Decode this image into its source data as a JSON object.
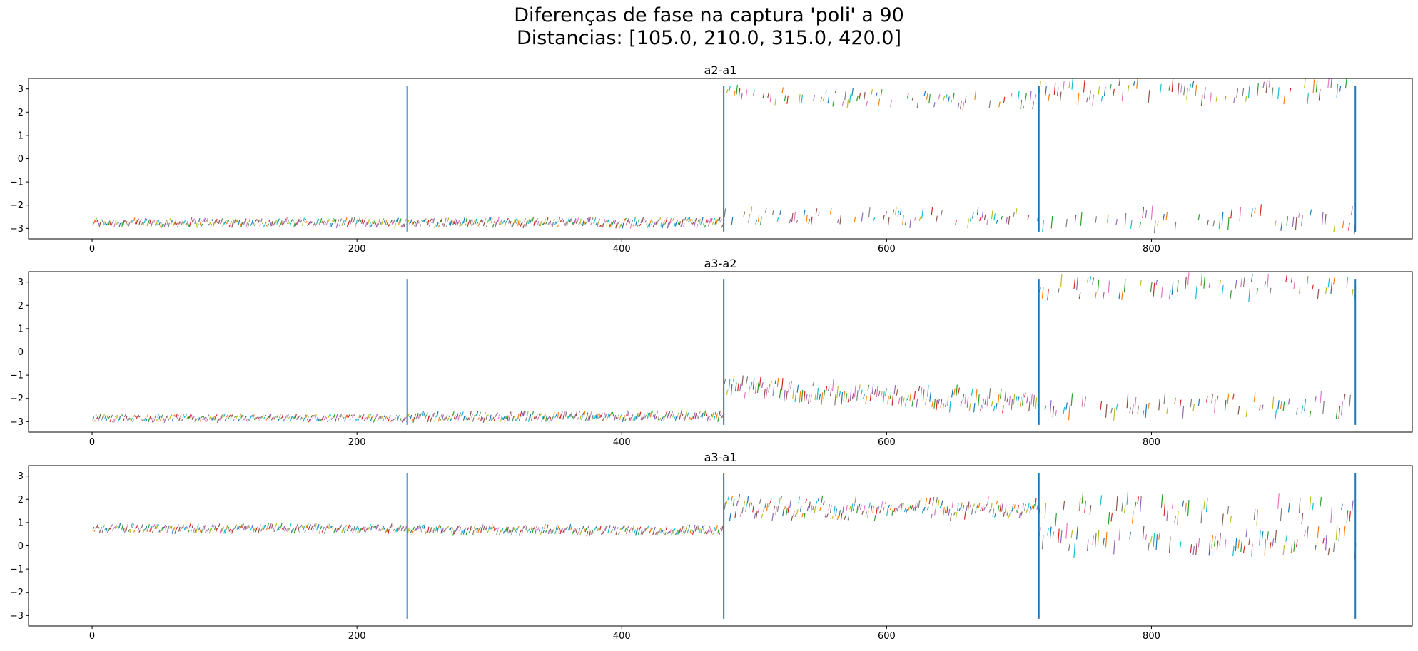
{
  "figure": {
    "title_line1": "Diferenças de fase na captura 'poli' a 90",
    "title_line2": "Distancias: [105.0, 210.0, 315.0, 420.0]"
  },
  "palette": [
    "#1f77b4",
    "#ff7f0e",
    "#2ca02c",
    "#d62728",
    "#9467bd",
    "#8c564b",
    "#e377c2",
    "#7f7f7f",
    "#bcbd22",
    "#17becf"
  ],
  "boundary_color": "#1f77b4",
  "chart_data": [
    {
      "type": "line",
      "title": "a2-a1",
      "xlabel": "",
      "ylabel": "",
      "xlim": [
        -48,
        997
      ],
      "ylim": [
        -3.45,
        3.45
      ],
      "xticks": [
        0,
        200,
        400,
        600,
        800
      ],
      "yticks": [
        -3,
        -2,
        -1,
        0,
        1,
        2,
        3
      ],
      "boundaries_x": [
        238,
        477,
        715,
        954
      ],
      "boundaries_y": [
        -3.14,
        3.14
      ],
      "segments": [
        {
          "x": [
            0,
            238
          ],
          "upper": null,
          "lower": [
            -2.75,
            -2.75
          ],
          "spread": 0.18,
          "density": 1.0
        },
        {
          "x": [
            238,
            477
          ],
          "upper": null,
          "lower": [
            -2.75,
            -2.75
          ],
          "spread": 0.2,
          "density": 1.0
        },
        {
          "x": [
            477,
            715
          ],
          "upper": [
            2.75,
            2.45
          ],
          "lower": [
            -2.45,
            -2.55
          ],
          "spread": 0.35,
          "density": 0.55
        },
        {
          "x": [
            715,
            954
          ],
          "upper": [
            2.9,
            2.9
          ],
          "lower": [
            -2.6,
            -2.6
          ],
          "spread": 0.5,
          "density": 0.45
        }
      ]
    },
    {
      "type": "line",
      "title": "a3-a2",
      "xlabel": "",
      "ylabel": "",
      "xlim": [
        -48,
        997
      ],
      "ylim": [
        -3.45,
        3.45
      ],
      "xticks": [
        0,
        200,
        400,
        600,
        800
      ],
      "yticks": [
        -3,
        -2,
        -1,
        0,
        1,
        2,
        3
      ],
      "boundaries_x": [
        238,
        477,
        715,
        954
      ],
      "boundaries_y": [
        -3.14,
        3.14
      ],
      "segments": [
        {
          "x": [
            0,
            238
          ],
          "upper": null,
          "lower": [
            -2.85,
            -2.85
          ],
          "spread": 0.15,
          "density": 1.0
        },
        {
          "x": [
            238,
            477
          ],
          "upper": null,
          "lower": [
            -2.8,
            -2.75
          ],
          "spread": 0.2,
          "density": 1.0
        },
        {
          "x": [
            477,
            715
          ],
          "upper": null,
          "lower": [
            -1.5,
            -2.2
          ],
          "spread": 0.45,
          "density": 0.6
        },
        {
          "x": [
            715,
            954
          ],
          "upper": [
            2.8,
            2.8
          ],
          "lower": [
            -2.3,
            -2.3
          ],
          "spread": 0.5,
          "density": 0.5
        }
      ]
    },
    {
      "type": "line",
      "title": "a3-a1",
      "xlabel": "",
      "ylabel": "",
      "xlim": [
        -48,
        997
      ],
      "ylim": [
        -3.45,
        3.45
      ],
      "xticks": [
        0,
        200,
        400,
        600,
        800
      ],
      "yticks": [
        -3,
        -2,
        -1,
        0,
        1,
        2,
        3
      ],
      "boundaries_x": [
        238,
        477,
        715,
        954
      ],
      "boundaries_y": [
        -3.14,
        3.14
      ],
      "segments": [
        {
          "x": [
            0,
            238
          ],
          "upper": null,
          "lower": [
            0.75,
            0.75
          ],
          "spread": 0.18,
          "density": 1.0
        },
        {
          "x": [
            238,
            477
          ],
          "upper": null,
          "lower": [
            0.7,
            0.65
          ],
          "spread": 0.2,
          "density": 1.0
        },
        {
          "x": [
            477,
            715
          ],
          "upper": [
            1.85,
            1.7
          ],
          "lower": [
            1.4,
            1.5
          ],
          "spread": 0.3,
          "density": 0.75
        },
        {
          "x": [
            715,
            954
          ],
          "upper": [
            1.6,
            1.6
          ],
          "lower": [
            0.2,
            0.2
          ],
          "spread": 0.6,
          "density": 0.5
        }
      ]
    }
  ]
}
